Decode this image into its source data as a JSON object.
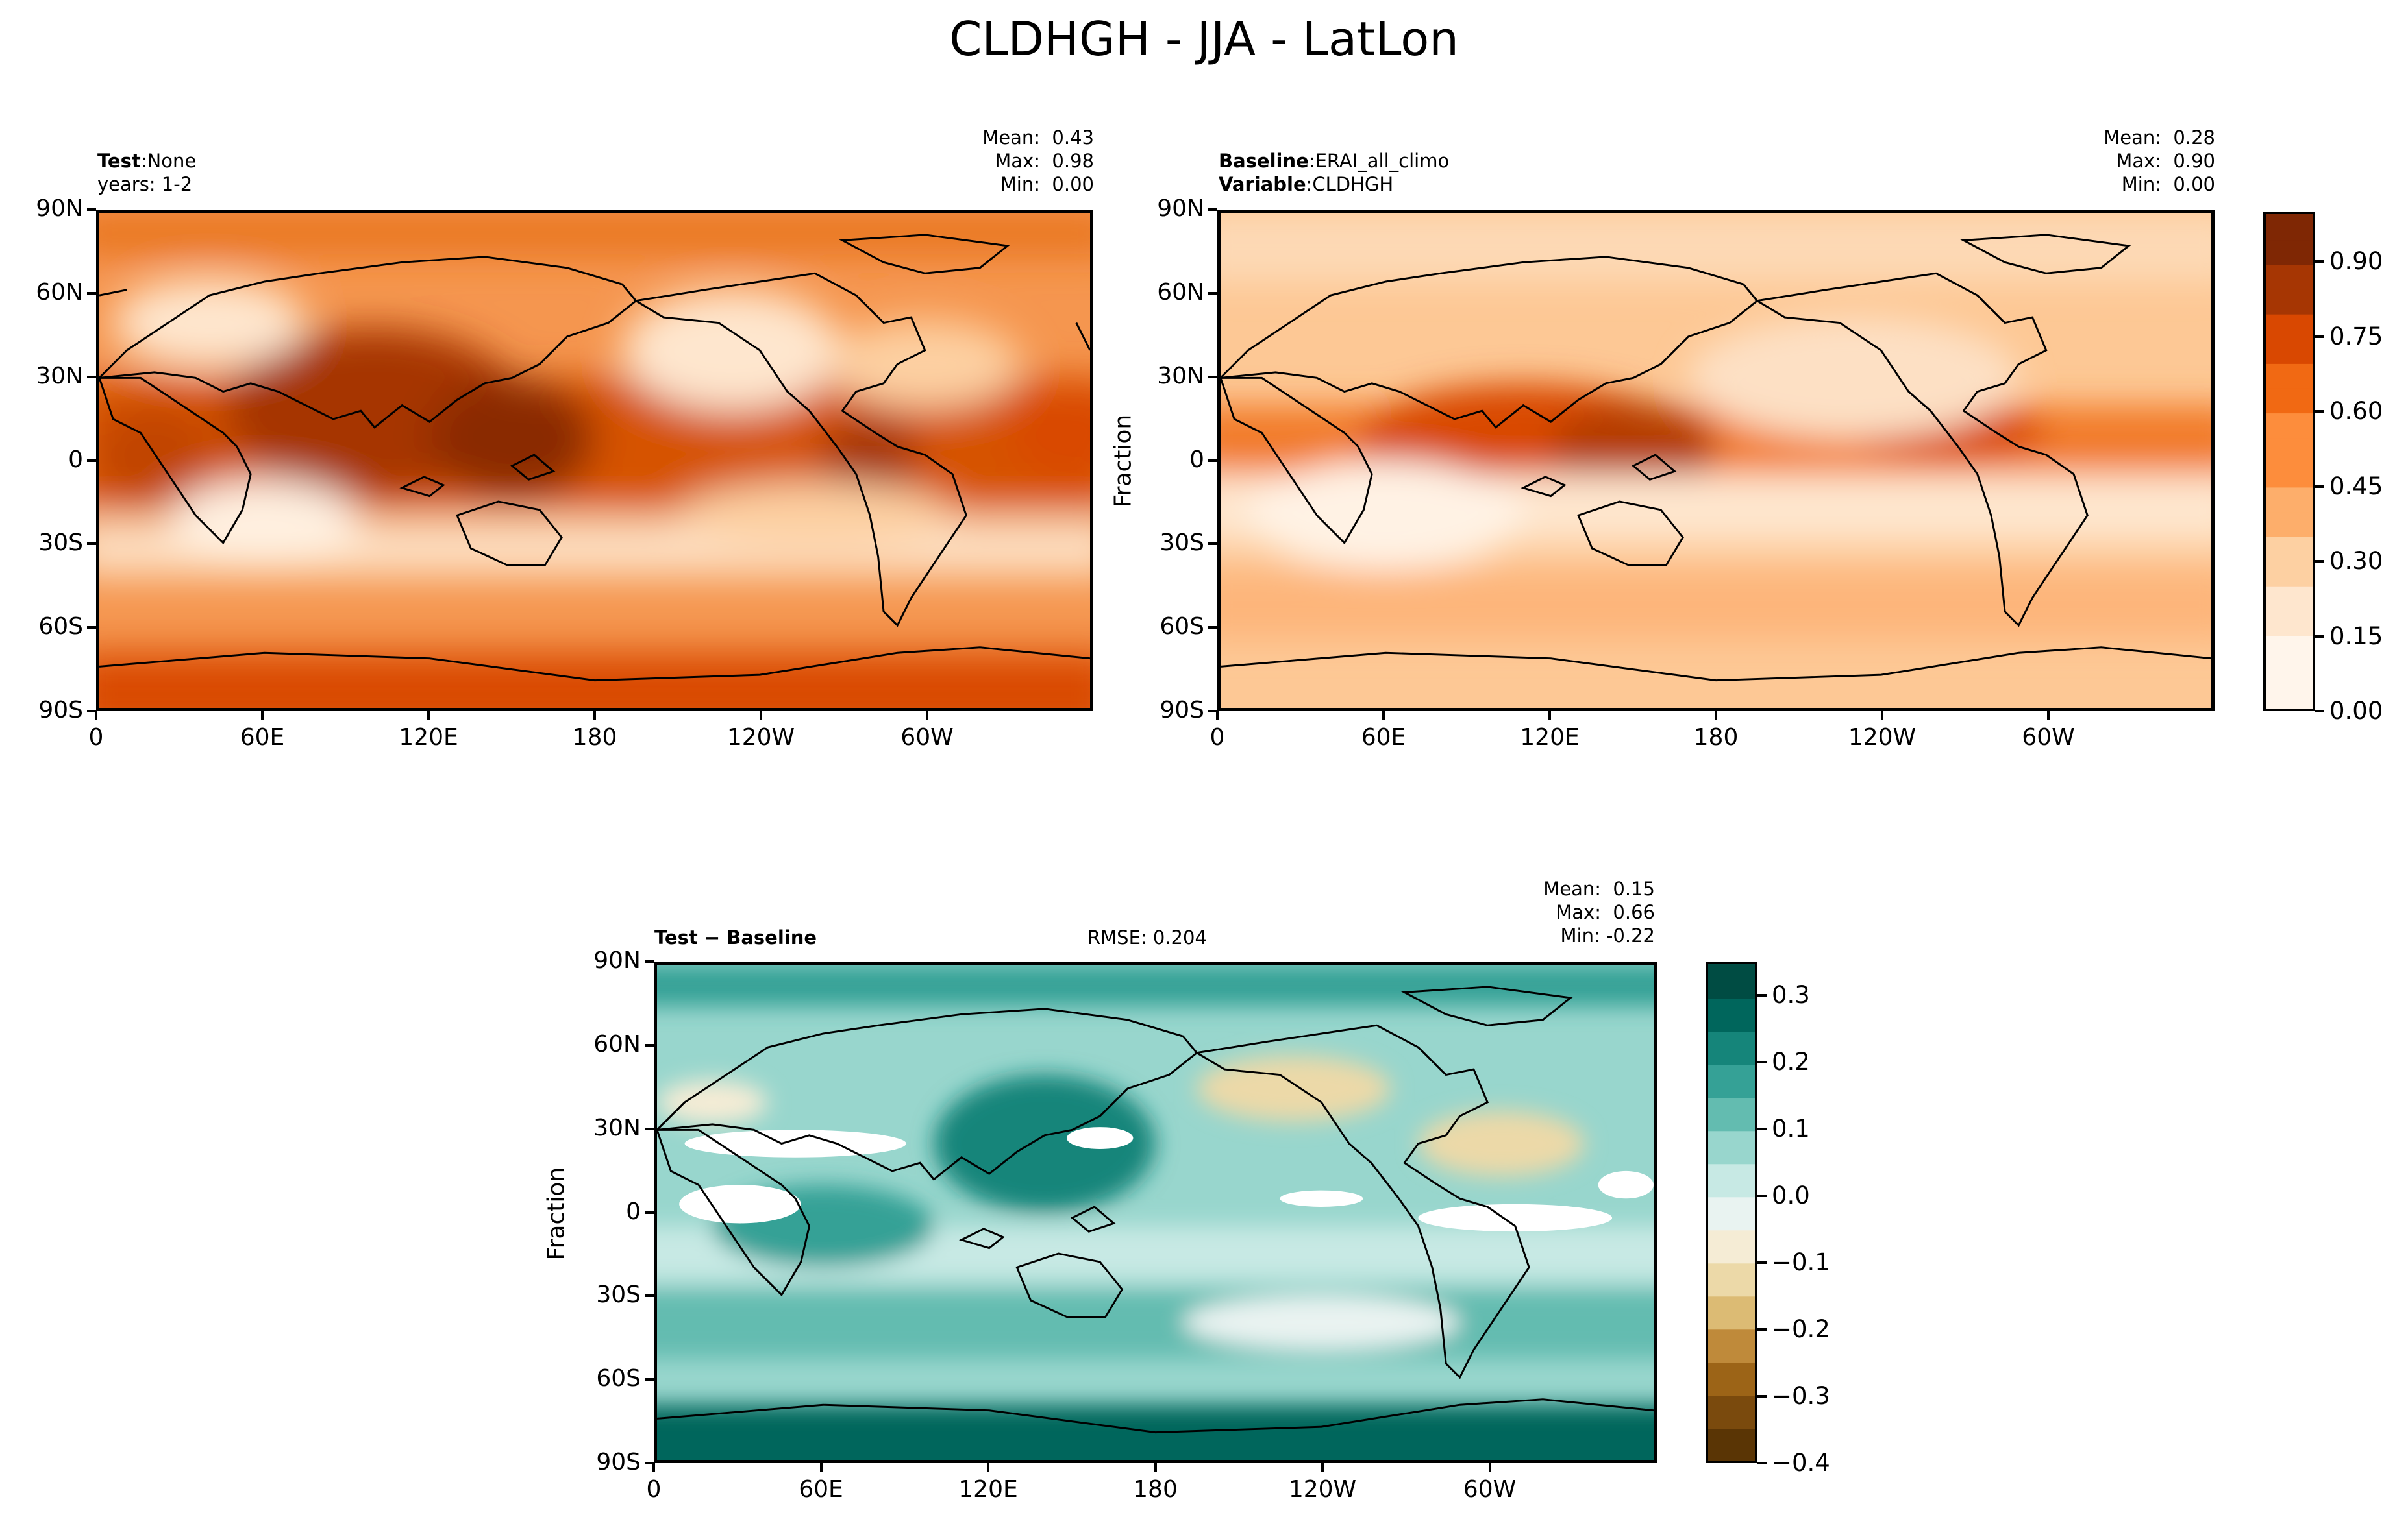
{
  "title": "CLDHGH - JJA - LatLon",
  "colors": {
    "oranges": [
      "#fff5eb",
      "#fee6ce",
      "#fdd0a2",
      "#fdae6b",
      "#fd8d3c",
      "#f16913",
      "#d94801",
      "#a63603",
      "#7f2704"
    ],
    "diff_neg": [
      "#5a3505",
      "#7a4a0d",
      "#9c6417",
      "#bf8a3a",
      "#dcbb74",
      "#ecd9a8",
      "#f5ecd5"
    ],
    "diff_pos": [
      "#e9f3f1",
      "#c7e9e4",
      "#98d6cd",
      "#63bcb0",
      "#35a196",
      "#15857a",
      "#00665c",
      "#004c43"
    ],
    "land_line": "#000000"
  },
  "axes": {
    "x_ticks": [
      "0",
      "60E",
      "120E",
      "180",
      "120W",
      "60W"
    ],
    "y_ticks": [
      "90N",
      "60N",
      "30N",
      "0",
      "30S",
      "60S",
      "90S"
    ]
  },
  "panels": {
    "test": {
      "label_bold": "Test",
      "label_value": "None",
      "years": "years: 1-2",
      "stats": "Mean:  0.43\nMax:  0.98\nMin:  0.00"
    },
    "baseline": {
      "label_bold": "Baseline",
      "label_value": "ERAI_all_climo",
      "variable_bold": "Variable",
      "variable_value": "CLDHGH",
      "stats": "Mean:  0.28\nMax:  0.90\nMin:  0.00",
      "ylabel": "Fraction"
    },
    "diff": {
      "label": "Test − Baseline",
      "rmse": "RMSE: 0.204",
      "stats": "Mean:  0.15\nMax:  0.66\nMin: -0.22",
      "ylabel": "Fraction"
    }
  },
  "chart_data": [
    {
      "type": "heatmap",
      "title": "Test: None",
      "subtitle": "years: 1-2",
      "xlabel": "",
      "ylabel": "",
      "xlim": [
        0,
        360
      ],
      "ylim": [
        -90,
        90
      ],
      "stats": {
        "mean": 0.43,
        "max": 0.98,
        "min": 0.0
      }
    },
    {
      "type": "heatmap",
      "title": "Baseline: ERAI_all_climo",
      "subtitle": "Variable: CLDHGH",
      "xlabel": "",
      "ylabel": "Fraction",
      "xlim": [
        0,
        360
      ],
      "ylim": [
        -90,
        90
      ],
      "stats": {
        "mean": 0.28,
        "max": 0.9,
        "min": 0.0
      }
    },
    {
      "type": "heatmap",
      "title": "Test − Baseline",
      "xlabel": "",
      "ylabel": "Fraction",
      "xlim": [
        0,
        360
      ],
      "ylim": [
        -90,
        90
      ],
      "rmse": 0.204,
      "stats": {
        "mean": 0.15,
        "max": 0.66,
        "min": -0.22
      }
    }
  ],
  "colorbars": {
    "top": {
      "ticks": [
        "0.00",
        "0.15",
        "0.30",
        "0.45",
        "0.60",
        "0.75",
        "0.90"
      ],
      "range": [
        0,
        1.0
      ]
    },
    "diff": {
      "ticks": [
        "−0.4",
        "−0.3",
        "−0.2",
        "−0.1",
        "0.0",
        "0.1",
        "0.2",
        "0.3"
      ],
      "range": [
        -0.4,
        0.35
      ]
    }
  }
}
